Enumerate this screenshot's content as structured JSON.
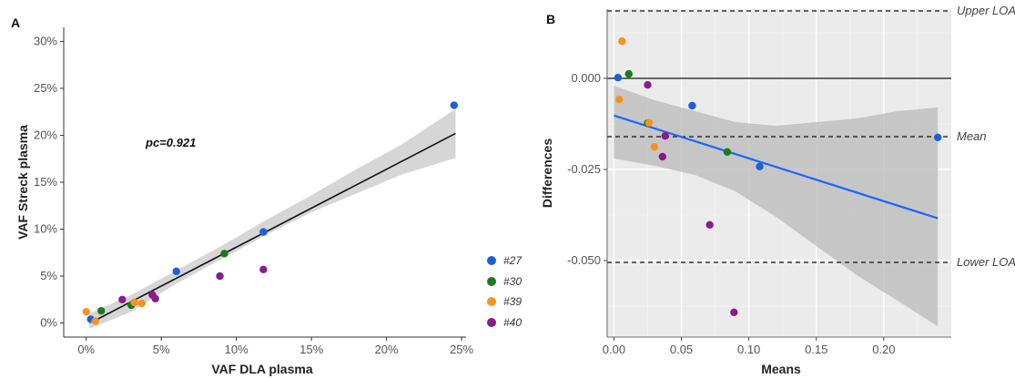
{
  "chart_data": [
    {
      "panel": "A",
      "type": "scatter",
      "xlabel": "VAF DLA plasma",
      "ylabel": "VAF Streck plasma",
      "xlim": [
        -1.5,
        25.3
      ],
      "ylim": [
        -1.5,
        31.5
      ],
      "x_ticks": [
        0,
        5,
        10,
        15,
        20,
        25
      ],
      "x_tick_labels": [
        "0%",
        "5%",
        "10%",
        "15%",
        "20%",
        "25%"
      ],
      "y_ticks": [
        0,
        5,
        10,
        15,
        20,
        25,
        30
      ],
      "y_tick_labels": [
        "0%",
        "5%",
        "10%",
        "15%",
        "20%",
        "25%",
        "30%"
      ],
      "annotation": "pc=0.921",
      "grid": false,
      "legend_position": "right",
      "fit_line": {
        "x": [
          0.5,
          24.6
        ],
        "y": [
          0.2,
          20.2
        ]
      },
      "confidence_band": {
        "x": [
          0.2,
          3,
          6,
          9,
          12,
          15,
          18,
          21,
          24.6
        ],
        "upper": [
          1.0,
          3.0,
          5.6,
          8.2,
          11.0,
          13.6,
          16.4,
          19.0,
          22.8
        ],
        "lower": [
          -0.6,
          1.2,
          4.2,
          6.8,
          9.4,
          11.8,
          13.8,
          15.8,
          17.6
        ]
      },
      "series": [
        {
          "name": "#27",
          "color": "#1f5fd6",
          "x": [
            0.3,
            6.0,
            11.8,
            24.5
          ],
          "y": [
            0.4,
            5.5,
            9.7,
            23.2
          ]
        },
        {
          "name": "#30",
          "color": "#1b7a1b",
          "x": [
            1.0,
            3.0,
            9.2
          ],
          "y": [
            1.3,
            1.9,
            7.4
          ]
        },
        {
          "name": "#39",
          "color": "#f7921e",
          "x": [
            0.0,
            0.6,
            3.7,
            3.2
          ],
          "y": [
            1.2,
            0.2,
            2.1,
            2.2
          ]
        },
        {
          "name": "#40",
          "color": "#8b1a8b",
          "x": [
            2.4,
            4.4,
            4.6,
            8.9,
            11.8
          ],
          "y": [
            2.5,
            3.0,
            2.6,
            5.0,
            5.7
          ]
        }
      ]
    },
    {
      "panel": "B",
      "type": "scatter",
      "xlabel": "Means",
      "ylabel": "Differences",
      "xlim": [
        -0.005,
        0.25
      ],
      "ylim": [
        -0.071,
        0.019
      ],
      "x_ticks": [
        0.0,
        0.05,
        0.1,
        0.15,
        0.2
      ],
      "x_tick_labels": [
        "0.00",
        "0.05",
        "0.10",
        "0.15",
        "0.20"
      ],
      "y_ticks": [
        0.0,
        -0.025,
        -0.05
      ],
      "y_tick_labels": [
        "0.000",
        "-0.025",
        "-0.050"
      ],
      "grid": true,
      "reference_lines": [
        {
          "label": "Upper LOA",
          "y": 0.0185,
          "style": "dashed"
        },
        {
          "label": "Mean",
          "y": -0.016,
          "style": "dashed"
        },
        {
          "label": "Lower LOA",
          "y": -0.0505,
          "style": "dashed"
        },
        {
          "label": "",
          "y": 0.0,
          "style": "solid"
        }
      ],
      "regression_line": {
        "x": [
          0.0,
          0.24
        ],
        "y": [
          -0.0102,
          -0.0384
        ],
        "color": "#1a66ff"
      },
      "confidence_band": {
        "x": [
          0.0,
          0.03,
          0.06,
          0.09,
          0.12,
          0.15,
          0.18,
          0.21,
          0.24
        ],
        "upper": [
          -0.002,
          -0.006,
          -0.009,
          -0.012,
          -0.013,
          -0.012,
          -0.011,
          -0.009,
          -0.008
        ],
        "lower": [
          -0.022,
          -0.024,
          -0.0265,
          -0.031,
          -0.038,
          -0.046,
          -0.054,
          -0.061,
          -0.068
        ]
      },
      "series": [
        {
          "name": "#27",
          "color": "#1f5fd6",
          "x": [
            0.003,
            0.058,
            0.108,
            0.24
          ],
          "y": [
            0.0002,
            -0.0075,
            -0.0242,
            -0.0162
          ]
        },
        {
          "name": "#30",
          "color": "#1b7a1b",
          "x": [
            0.011,
            0.025,
            0.084
          ],
          "y": [
            0.0012,
            -0.0123,
            -0.0202
          ]
        },
        {
          "name": "#39",
          "color": "#f7921e",
          "x": [
            0.006,
            0.004,
            0.026,
            0.03
          ],
          "y": [
            0.0102,
            -0.0058,
            -0.0122,
            -0.0188
          ]
        },
        {
          "name": "#40",
          "color": "#8b1a8b",
          "x": [
            0.025,
            0.038,
            0.036,
            0.071,
            0.089
          ],
          "y": [
            -0.0018,
            -0.0158,
            -0.0215,
            -0.0402,
            -0.0642
          ]
        }
      ]
    }
  ]
}
